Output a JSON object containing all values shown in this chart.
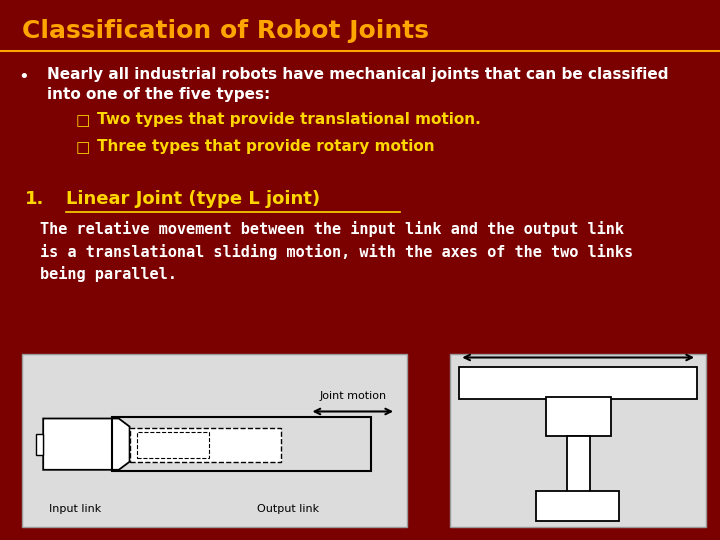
{
  "background_color": "#7B0000",
  "title": "Classification of Robot Joints",
  "title_color": "#FFA500",
  "title_fontsize": 18,
  "bullet_text_line1": "Nearly all industrial robots have mechanical joints that can be classified",
  "bullet_text_line2": "into one of the five types:",
  "bullet_color": "#FFFFFF",
  "bullet_fontsize": 11,
  "sub_bullet1": "Two types that provide translational motion.",
  "sub_bullet2": "Three types that provide rotary motion",
  "sub_bullet_color": "#FFD700",
  "sub_bullet_fontsize": 11,
  "section_num": "1.",
  "section_title": "Linear Joint (type L joint)",
  "section_color": "#FFD700",
  "section_fontsize": 13,
  "body_text": "The relative movement between the input link and the output link\nis a translational sliding motion, with the axes of the two links\nbeing parallel.",
  "body_color": "#FFFFFF",
  "body_fontsize": 11
}
